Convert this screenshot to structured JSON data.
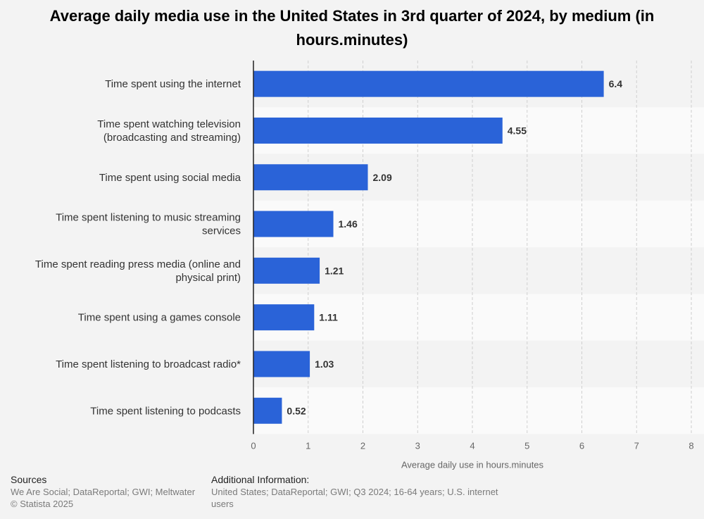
{
  "chart_data": {
    "type": "bar",
    "orientation": "horizontal",
    "title": "Average daily media use in the United States in 3rd quarter of 2024, by medium (in hours.minutes)",
    "xlabel": "Average daily use in hours.minutes",
    "ylabel": "",
    "xlim": [
      0,
      8
    ],
    "xticks": [
      0,
      1,
      2,
      3,
      4,
      5,
      6,
      7,
      8
    ],
    "grid": true,
    "categories": [
      [
        "Time spent using the internet"
      ],
      [
        "Time spent watching television",
        "(broadcasting and streaming)"
      ],
      [
        "Time spent using social media"
      ],
      [
        "Time spent listening to music streaming",
        "services"
      ],
      [
        "Time spent reading press media (online and",
        "physical print)"
      ],
      [
        "Time spent using a games console"
      ],
      [
        "Time spent listening to broadcast radio*"
      ],
      [
        "Time spent listening to podcasts"
      ]
    ],
    "values": [
      6.4,
      4.55,
      2.09,
      1.46,
      1.21,
      1.11,
      1.03,
      0.52
    ],
    "value_labels": [
      "6.4",
      "4.55",
      "2.09",
      "1.46",
      "1.21",
      "1.11",
      "1.03",
      "0.52"
    ]
  },
  "colors": {
    "bar": "#2a63d8",
    "band_a": "#f3f3f3",
    "band_b": "#fafafa",
    "gridline": "#cfcfcf",
    "axis": "#222222",
    "category_text": "#333333",
    "value_text": "#333333",
    "tick_text": "#666666"
  },
  "footer": {
    "sources_heading": "Sources",
    "sources_lines": [
      "We Are Social; DataReportal; GWI; Meltwater",
      "© Statista 2025"
    ],
    "info_heading": "Additional Information:",
    "info_lines": [
      "United States; DataReportal; GWI; Q3 2024; 16-64 years; U.S. internet",
      "users"
    ]
  }
}
